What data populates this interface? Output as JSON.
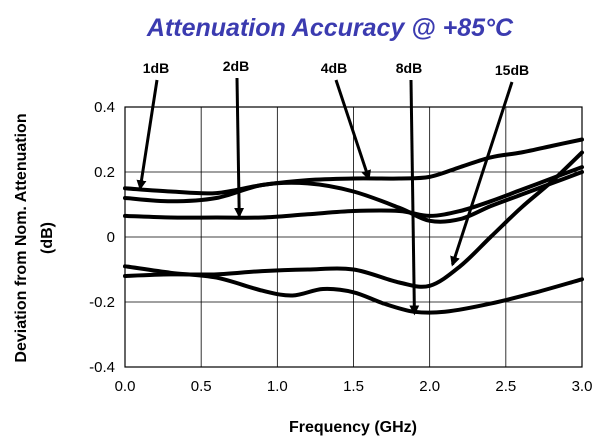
{
  "chart_data": {
    "type": "line",
    "title": "Attenuation Accuracy @ +85°C",
    "xlabel": "Frequency (GHz)",
    "ylabel_line1": "Deviation from Nom. Attenuation",
    "ylabel_line2": "(dB)",
    "xlim": [
      0.0,
      3.0
    ],
    "ylim": [
      -0.4,
      0.4
    ],
    "x_ticks": [
      "0.0",
      "0.5",
      "1.0",
      "1.5",
      "2.0",
      "2.5",
      "3.0"
    ],
    "y_ticks": [
      "0.4",
      "0.2",
      "0",
      "-0.2",
      "-0.4"
    ],
    "grid": true,
    "colors": {
      "title": "#3b3bb0",
      "line": "#000000",
      "grid": "#000000"
    },
    "series": [
      {
        "name": "1dB",
        "x": [
          0.0,
          0.3,
          0.6,
          0.9,
          1.2,
          1.5,
          1.8,
          2.0,
          2.2,
          2.4,
          2.6,
          2.8,
          3.0
        ],
        "y": [
          0.15,
          0.14,
          0.135,
          0.16,
          0.175,
          0.18,
          0.18,
          0.185,
          0.215,
          0.245,
          0.26,
          0.28,
          0.3
        ]
      },
      {
        "name": "2dB",
        "x": [
          0.0,
          0.3,
          0.6,
          0.9,
          1.2,
          1.5,
          1.8,
          2.0,
          2.2,
          2.4,
          2.6,
          2.8,
          3.0
        ],
        "y": [
          0.065,
          0.06,
          0.06,
          0.06,
          0.07,
          0.08,
          0.08,
          0.065,
          0.08,
          0.11,
          0.145,
          0.18,
          0.215
        ]
      },
      {
        "name": "4dB",
        "x": [
          0.0,
          0.3,
          0.6,
          0.9,
          1.2,
          1.5,
          1.8,
          2.0,
          2.2,
          2.4,
          2.6,
          2.8,
          3.0
        ],
        "y": [
          0.12,
          0.11,
          0.12,
          0.16,
          0.165,
          0.14,
          0.09,
          0.05,
          0.055,
          0.095,
          0.13,
          0.165,
          0.2
        ]
      },
      {
        "name": "8dB",
        "x": [
          0.0,
          0.3,
          0.6,
          0.9,
          1.2,
          1.5,
          1.8,
          2.0,
          2.2,
          2.4,
          2.6,
          2.8,
          3.0
        ],
        "y": [
          -0.12,
          -0.115,
          -0.115,
          -0.105,
          -0.1,
          -0.1,
          -0.14,
          -0.15,
          -0.09,
          0.0,
          0.09,
          0.17,
          0.26
        ]
      },
      {
        "name": "15dB",
        "x": [
          0.0,
          0.3,
          0.6,
          0.9,
          1.1,
          1.3,
          1.5,
          1.7,
          1.9,
          2.1,
          2.4,
          2.7,
          3.0
        ],
        "y": [
          -0.09,
          -0.11,
          -0.125,
          -0.165,
          -0.18,
          -0.16,
          -0.17,
          -0.205,
          -0.23,
          -0.23,
          -0.205,
          -0.17,
          -0.13
        ]
      }
    ],
    "annotations": [
      {
        "label": "1dB",
        "target_x": 0.1,
        "target_y": 0.15
      },
      {
        "label": "2dB",
        "target_x": 0.75,
        "target_y": 0.065
      },
      {
        "label": "4dB",
        "target_x": 1.6,
        "target_y": 0.18
      },
      {
        "label": "8dB",
        "target_x": 1.9,
        "target_y": -0.235
      },
      {
        "label": "15dB",
        "target_x": 2.15,
        "target_y": -0.085
      }
    ]
  }
}
